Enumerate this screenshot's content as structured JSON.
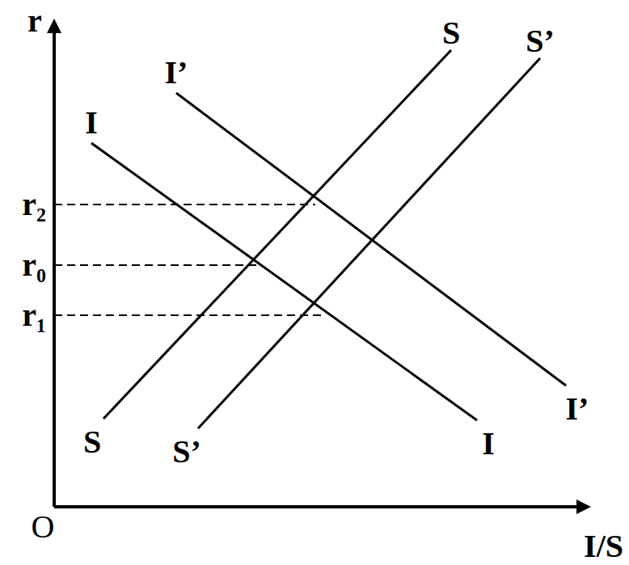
{
  "chart_data": {
    "type": "line",
    "x_label": "I/S",
    "y_label": "r",
    "origin_label": "O",
    "xlim": [
      0,
      660
    ],
    "ylim": [
      0,
      600
    ],
    "xticks": [],
    "yticks": [
      {
        "value": 237,
        "label": "r₁"
      },
      {
        "value": 299,
        "label": "r₀"
      },
      {
        "value": 374,
        "label": "r₂"
      }
    ],
    "tick_labels": "y",
    "grid": false,
    "color": "#000000",
    "line_style": "solid",
    "guides": [
      {
        "y": 374,
        "x": 323,
        "line_style": "dashed"
      },
      {
        "y": 299,
        "x": 251,
        "line_style": "dashed"
      },
      {
        "y": 237,
        "x": 330,
        "line_style": "dashed"
      }
    ],
    "series": [
      {
        "name": "I",
        "color": "#000000",
        "x": [
          46,
          523
        ],
        "values": [
          450,
          107
        ]
      },
      {
        "name": "I’",
        "color": "#000000",
        "x": [
          151,
          633
        ],
        "values": [
          512,
          150
        ]
      },
      {
        "name": "S",
        "color": "#000000",
        "x": [
          61,
          491
        ],
        "values": [
          109,
          565
        ]
      },
      {
        "name": "S’",
        "color": "#000000",
        "x": [
          178,
          601
        ],
        "values": [
          97,
          555
        ]
      }
    ]
  }
}
